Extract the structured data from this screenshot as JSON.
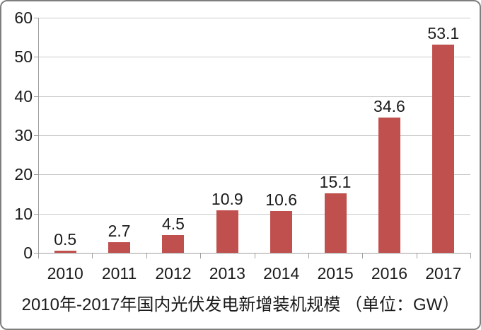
{
  "frame": {
    "background_color": "#FFFFFF",
    "border_color": "#7F7F7F"
  },
  "chart_data": {
    "type": "bar",
    "title": "2010年-2017年国内光伏发电新增装机规模 （单位：GW）",
    "categories": [
      "2010",
      "2011",
      "2012",
      "2013",
      "2014",
      "2015",
      "2016",
      "2017"
    ],
    "values": [
      0.5,
      2.7,
      4.5,
      10.9,
      10.6,
      15.1,
      34.6,
      53.1
    ],
    "data_labels": [
      "0.5",
      "2.7",
      "4.5",
      "10.9",
      "10.6",
      "15.1",
      "34.6",
      "53.1"
    ],
    "y_ticks": [
      0,
      10,
      20,
      30,
      40,
      50,
      60
    ],
    "ylim": [
      0,
      60
    ],
    "xlabel": "",
    "ylabel": "",
    "unit": "GW",
    "grid": "horizontal",
    "legend": "none",
    "title_position": "bottom",
    "bar_color": "#C0504D",
    "gridline_color": "#C9C9C9",
    "axis_color": "#9E9E9E",
    "text_color": "#1A1A1A"
  }
}
